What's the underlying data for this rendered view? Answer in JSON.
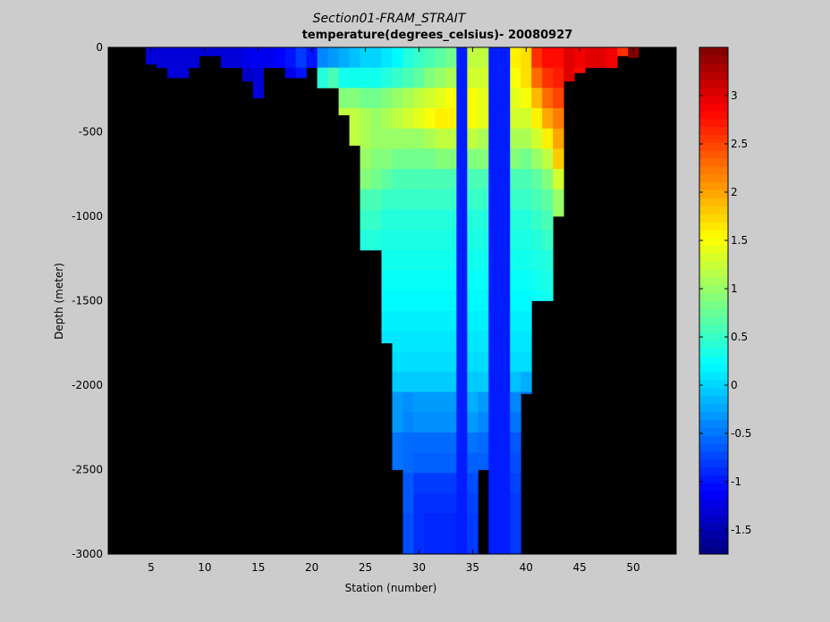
{
  "chart_data": {
    "type": "heatmap",
    "title": "Section01-FRAM_STRAIT",
    "subtitle": "temperature(degrees_celsius)- 20080927",
    "xlabel": "Station (number)",
    "ylabel": "Depth (meter)",
    "xlim": [
      1,
      54
    ],
    "ylim": [
      -3000,
      0
    ],
    "x_ticks": [
      5,
      10,
      15,
      20,
      25,
      30,
      35,
      40,
      45,
      50
    ],
    "y_ticks": [
      0,
      -500,
      -1000,
      -1500,
      -2000,
      -2500,
      -3000
    ],
    "colorbar": {
      "range": [
        -1.75,
        3.5
      ],
      "ticks": [
        3,
        2.5,
        2,
        1.5,
        1,
        0.5,
        0,
        -0.5,
        -1,
        -1.5
      ],
      "colormap": "jet"
    },
    "background_color": "#000000",
    "colors": {
      "figure_bg": "#cccccc",
      "no_data": "#000000"
    },
    "station_columns": [
      {
        "station": 5,
        "bottom": -100,
        "t": [
          -1.3,
          -1.2
        ]
      },
      {
        "station": 6,
        "bottom": -120,
        "t": [
          -1.3,
          -1.2,
          -1.15
        ]
      },
      {
        "station": 7,
        "bottom": -180,
        "t": [
          -1.3,
          -1.3,
          -1.2,
          -0.6
        ]
      },
      {
        "station": 8,
        "bottom": -180,
        "t": [
          -1.3,
          -1.3,
          -1.2,
          -0.6
        ]
      },
      {
        "station": 9,
        "bottom": -120,
        "t": [
          -1.3,
          -1.2,
          -1.2
        ]
      },
      {
        "station": 10,
        "bottom": -50,
        "t": [
          -1.3
        ]
      },
      {
        "station": 11,
        "bottom": -50,
        "t": [
          -1.3
        ]
      },
      {
        "station": 12,
        "bottom": -120,
        "t": [
          -1.3,
          -1.4,
          -1.4
        ]
      },
      {
        "station": 13,
        "bottom": -120,
        "t": [
          -1.3,
          -1.4,
          -1.4
        ]
      },
      {
        "station": 14,
        "bottom": -200,
        "t": [
          -1.2,
          -1.4,
          -1.4,
          -1.0
        ]
      },
      {
        "station": 15,
        "bottom": -300,
        "t": [
          -1.15,
          -1.3,
          -1.3,
          -1.2,
          -0.7
        ]
      },
      {
        "station": 16,
        "bottom": -120,
        "t": [
          -1.2,
          -1.3,
          -1.3
        ]
      },
      {
        "station": 17,
        "bottom": -120,
        "t": [
          -1.1,
          -1.3,
          -1.3
        ]
      },
      {
        "station": 18,
        "bottom": -180,
        "t": [
          -1.0,
          -1.2,
          -1.3,
          -1.0
        ]
      },
      {
        "station": 19,
        "bottom": -180,
        "t": [
          -0.8,
          -1.0,
          -1.1,
          -1.0
        ]
      },
      {
        "station": 20,
        "bottom": -120,
        "t": [
          -1.0,
          -0.8,
          -0.4
        ]
      },
      {
        "station": 21,
        "bottom": -240,
        "t": [
          -0.4,
          0.4,
          0.8,
          1.1
        ]
      },
      {
        "station": 22,
        "bottom": -240,
        "t": [
          -0.3,
          0.6,
          1.0,
          1.3
        ]
      },
      {
        "station": 23,
        "bottom": -400,
        "t": [
          -0.2,
          0.3,
          0.9,
          1.2,
          1.3,
          1.2
        ]
      },
      {
        "station": 24,
        "bottom": -580,
        "t": [
          -0.1,
          0.3,
          0.9,
          1.2,
          1.2,
          1.1,
          1.0,
          0.8
        ]
      },
      {
        "station": 25,
        "bottom": -1200,
        "t": [
          0.0,
          0.3,
          0.8,
          1.1,
          1.1,
          1.0,
          0.9,
          0.6,
          0.5,
          0.4,
          0.35,
          0.3,
          0.3
        ]
      },
      {
        "station": 26,
        "bottom": -1200,
        "t": [
          0.0,
          0.3,
          0.8,
          1.0,
          1.0,
          0.9,
          0.8,
          0.6,
          0.5,
          0.4,
          0.35,
          0.3,
          0.3
        ]
      },
      {
        "station": 27,
        "bottom": -1750,
        "t": [
          0.1,
          0.4,
          0.9,
          1.1,
          1.0,
          0.9,
          0.7,
          0.5,
          0.4,
          0.35,
          0.3,
          0.25,
          0.2,
          0.15,
          0.1,
          0.05,
          0.0
        ]
      },
      {
        "station": 28,
        "bottom": -2500,
        "t": [
          0.2,
          0.5,
          1.0,
          1.2,
          1.0,
          0.8,
          0.6,
          0.5,
          0.4,
          0.35,
          0.3,
          0.25,
          0.2,
          0.15,
          0.1,
          0.05,
          -0.05,
          -0.3,
          -0.3,
          -0.5,
          -0.5,
          -0.6,
          -0.6
        ]
      },
      {
        "station": 29,
        "bottom": -3000,
        "t": [
          0.4,
          0.6,
          1.1,
          1.3,
          1.0,
          0.8,
          0.6,
          0.5,
          0.4,
          0.35,
          0.3,
          0.25,
          0.2,
          0.15,
          0.1,
          0.05,
          -0.05,
          -0.35,
          -0.4,
          -0.55,
          -0.55,
          -0.65,
          -0.65,
          -0.7,
          -0.7,
          -0.7
        ]
      },
      {
        "station": 30,
        "bottom": -3000,
        "t": [
          0.5,
          0.7,
          1.2,
          1.4,
          1.0,
          0.8,
          0.6,
          0.5,
          0.4,
          0.35,
          0.3,
          0.25,
          0.2,
          0.15,
          0.1,
          0.05,
          -0.05,
          -0.3,
          -0.35,
          -0.55,
          -0.6,
          -0.8,
          -0.85,
          -0.85,
          -0.85,
          -0.85
        ]
      },
      {
        "station": 31,
        "bottom": -3000,
        "t": [
          0.6,
          0.9,
          1.3,
          1.5,
          1.1,
          0.8,
          0.6,
          0.5,
          0.4,
          0.35,
          0.3,
          0.25,
          0.2,
          0.15,
          0.1,
          0.05,
          -0.05,
          -0.3,
          -0.35,
          -0.55,
          -0.6,
          -0.8,
          -0.85,
          -0.9,
          -0.9,
          -0.9
        ]
      },
      {
        "station": 32,
        "bottom": -3000,
        "t": [
          0.7,
          1.0,
          1.4,
          1.6,
          1.2,
          0.9,
          0.6,
          0.5,
          0.4,
          0.35,
          0.3,
          0.25,
          0.2,
          0.15,
          0.1,
          0.05,
          -0.05,
          -0.3,
          -0.35,
          -0.55,
          -0.6,
          -0.8,
          -0.85,
          -0.9,
          -0.9,
          -0.9
        ]
      },
      {
        "station": 33,
        "bottom": -3000,
        "t": [
          0.8,
          1.1,
          1.5,
          1.6,
          1.2,
          0.9,
          0.6,
          0.5,
          0.4,
          0.35,
          0.3,
          0.25,
          0.2,
          0.15,
          0.1,
          0.05,
          -0.05,
          -0.3,
          -0.35,
          -0.55,
          -0.6,
          -0.8,
          -0.85,
          -0.9,
          -0.9,
          -0.9
        ]
      },
      {
        "station": 34,
        "bottom": -3000,
        "t": [
          -0.95,
          -0.95,
          -0.95,
          -0.95,
          -0.95,
          -0.95,
          -0.95,
          -0.95,
          -0.95,
          -0.95,
          -0.95,
          -0.95,
          -0.95,
          -0.95,
          -0.95,
          -0.95,
          -0.95,
          -0.95,
          -0.95,
          -0.95,
          -0.95,
          -0.95,
          -0.95,
          -0.95,
          -0.95,
          -0.95
        ]
      },
      {
        "station": 35,
        "bottom": -3000,
        "t": [
          1.2,
          1.3,
          1.5,
          1.5,
          1.2,
          0.9,
          0.6,
          0.5,
          0.4,
          0.35,
          0.3,
          0.25,
          0.2,
          0.15,
          0.1,
          0.05,
          -0.05,
          -0.2,
          -0.3,
          -0.5,
          -0.6,
          -0.7,
          -0.75,
          -0.8,
          -0.8,
          -0.8
        ]
      },
      {
        "station": 36,
        "bottom": -2500,
        "t": [
          1.2,
          1.3,
          1.4,
          1.4,
          1.1,
          0.9,
          0.6,
          0.5,
          0.4,
          0.35,
          0.3,
          0.25,
          0.2,
          0.15,
          0.1,
          0.05,
          -0.05,
          -0.3,
          -0.4,
          -0.55,
          -0.6,
          -0.7,
          -0.7
        ]
      },
      {
        "station": 37,
        "bottom": -3000,
        "t": [
          -0.95,
          -0.95,
          -0.95,
          -0.95,
          -0.95,
          -0.95,
          -0.95,
          -0.95,
          -0.95,
          -0.95,
          -0.95,
          -0.95,
          -0.95,
          -0.95,
          -0.95,
          -0.95,
          -0.95,
          -0.95,
          -0.95,
          -0.95,
          -0.95,
          -0.95,
          -0.95,
          -0.95,
          -0.95,
          -0.95
        ]
      },
      {
        "station": 38,
        "bottom": -3000,
        "t": [
          -0.95,
          -0.95,
          -0.95,
          -0.95,
          -0.95,
          -0.95,
          -0.95,
          -0.95,
          -0.95,
          -0.95,
          -0.95,
          -0.95,
          -0.95,
          -0.95,
          -0.95,
          -0.95,
          -0.95,
          -0.95,
          -0.95,
          -0.95,
          -0.95,
          -0.95,
          -0.95,
          -0.95,
          -0.95,
          -0.95
        ]
      },
      {
        "station": 39,
        "bottom": -3000,
        "t": [
          1.6,
          1.5,
          1.4,
          1.3,
          1.1,
          0.9,
          0.6,
          0.5,
          0.4,
          0.35,
          0.3,
          0.25,
          0.2,
          0.15,
          0.1,
          0.05,
          -0.1,
          -0.4,
          -0.5,
          -0.65,
          -0.7,
          -0.75,
          -0.8,
          -0.8,
          -0.8,
          -0.8
        ]
      },
      {
        "station": 40,
        "bottom": -2050,
        "t": [
          1.7,
          1.7,
          1.5,
          1.3,
          1.1,
          0.8,
          0.6,
          0.5,
          0.4,
          0.35,
          0.3,
          0.25,
          0.2,
          0.15,
          0.1,
          0.05,
          -0.2,
          -0.5,
          -0.55
        ]
      },
      {
        "station": 41,
        "bottom": -1500,
        "t": [
          2.6,
          2.3,
          1.9,
          1.6,
          1.3,
          1.0,
          0.7,
          0.6,
          0.5,
          0.4,
          0.35,
          0.3,
          0.25,
          0.2
        ]
      },
      {
        "station": 42,
        "bottom": -1500,
        "t": [
          2.8,
          2.6,
          2.3,
          2.0,
          1.6,
          1.2,
          0.9,
          0.7,
          0.6,
          0.5,
          0.4,
          0.35,
          0.3,
          0.25
        ]
      },
      {
        "station": 43,
        "bottom": -1000,
        "t": [
          2.8,
          2.7,
          2.5,
          2.2,
          2.0,
          1.8,
          1.3,
          1.0,
          1.0,
          0.7
        ]
      },
      {
        "station": 44,
        "bottom": -200,
        "t": [
          3.0,
          3.0,
          2.8,
          2.8
        ]
      },
      {
        "station": 45,
        "bottom": -150,
        "t": [
          2.9,
          2.8,
          2.7
        ]
      },
      {
        "station": 46,
        "bottom": -120,
        "t": [
          3.0,
          3.0,
          2.9
        ]
      },
      {
        "station": 47,
        "bottom": -120,
        "t": [
          3.0,
          3.0,
          2.9
        ]
      },
      {
        "station": 48,
        "bottom": -120,
        "t": [
          2.9,
          2.8,
          2.8
        ]
      },
      {
        "station": 49,
        "bottom": -50,
        "t": [
          2.6
        ]
      },
      {
        "station": 50,
        "bottom": -60,
        "t": [
          3.5
        ]
      }
    ]
  }
}
